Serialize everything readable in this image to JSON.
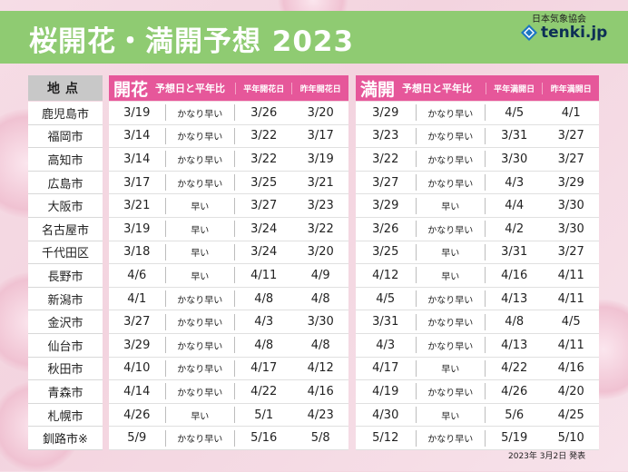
{
  "title": "桜開花・満開予想 2023",
  "logo": {
    "org": "日本気象協会",
    "brand": "tenki.jp"
  },
  "headers": {
    "location": "地点",
    "kaika_main": "開花",
    "kaika_sub": "予想日と平年比",
    "kaika_normal": "平年開花日",
    "kaika_last": "昨年開花日",
    "mankai_main": "満開",
    "mankai_sub": "予想日と平年比",
    "mankai_normal": "平年満開日",
    "mankai_last": "昨年満開日"
  },
  "rows": [
    {
      "loc": "鹿児島市",
      "k_date": "3/19",
      "k_cmp": "かなり早い",
      "k_norm": "3/26",
      "k_last": "3/20",
      "m_date": "3/29",
      "m_cmp": "かなり早い",
      "m_norm": "4/5",
      "m_last": "4/1"
    },
    {
      "loc": "福岡市",
      "k_date": "3/14",
      "k_cmp": "かなり早い",
      "k_norm": "3/22",
      "k_last": "3/17",
      "m_date": "3/23",
      "m_cmp": "かなり早い",
      "m_norm": "3/31",
      "m_last": "3/27"
    },
    {
      "loc": "高知市",
      "k_date": "3/14",
      "k_cmp": "かなり早い",
      "k_norm": "3/22",
      "k_last": "3/19",
      "m_date": "3/22",
      "m_cmp": "かなり早い",
      "m_norm": "3/30",
      "m_last": "3/27"
    },
    {
      "loc": "広島市",
      "k_date": "3/17",
      "k_cmp": "かなり早い",
      "k_norm": "3/25",
      "k_last": "3/21",
      "m_date": "3/27",
      "m_cmp": "かなり早い",
      "m_norm": "4/3",
      "m_last": "3/29"
    },
    {
      "loc": "大阪市",
      "k_date": "3/21",
      "k_cmp": "早い",
      "k_norm": "3/27",
      "k_last": "3/23",
      "m_date": "3/29",
      "m_cmp": "早い",
      "m_norm": "4/4",
      "m_last": "3/30"
    },
    {
      "loc": "名古屋市",
      "k_date": "3/19",
      "k_cmp": "早い",
      "k_norm": "3/24",
      "k_last": "3/22",
      "m_date": "3/26",
      "m_cmp": "かなり早い",
      "m_norm": "4/2",
      "m_last": "3/30"
    },
    {
      "loc": "千代田区",
      "k_date": "3/18",
      "k_cmp": "早い",
      "k_norm": "3/24",
      "k_last": "3/20",
      "m_date": "3/25",
      "m_cmp": "早い",
      "m_norm": "3/31",
      "m_last": "3/27"
    },
    {
      "loc": "長野市",
      "k_date": "4/6",
      "k_cmp": "早い",
      "k_norm": "4/11",
      "k_last": "4/9",
      "m_date": "4/12",
      "m_cmp": "早い",
      "m_norm": "4/16",
      "m_last": "4/11"
    },
    {
      "loc": "新潟市",
      "k_date": "4/1",
      "k_cmp": "かなり早い",
      "k_norm": "4/8",
      "k_last": "4/8",
      "m_date": "4/5",
      "m_cmp": "かなり早い",
      "m_norm": "4/13",
      "m_last": "4/11"
    },
    {
      "loc": "金沢市",
      "k_date": "3/27",
      "k_cmp": "かなり早い",
      "k_norm": "4/3",
      "k_last": "3/30",
      "m_date": "3/31",
      "m_cmp": "かなり早い",
      "m_norm": "4/8",
      "m_last": "4/5"
    },
    {
      "loc": "仙台市",
      "k_date": "3/29",
      "k_cmp": "かなり早い",
      "k_norm": "4/8",
      "k_last": "4/8",
      "m_date": "4/3",
      "m_cmp": "かなり早い",
      "m_norm": "4/13",
      "m_last": "4/11"
    },
    {
      "loc": "秋田市",
      "k_date": "4/10",
      "k_cmp": "かなり早い",
      "k_norm": "4/17",
      "k_last": "4/12",
      "m_date": "4/17",
      "m_cmp": "早い",
      "m_norm": "4/22",
      "m_last": "4/16"
    },
    {
      "loc": "青森市",
      "k_date": "4/14",
      "k_cmp": "かなり早い",
      "k_norm": "4/22",
      "k_last": "4/16",
      "m_date": "4/19",
      "m_cmp": "かなり早い",
      "m_norm": "4/26",
      "m_last": "4/20"
    },
    {
      "loc": "札幌市",
      "k_date": "4/26",
      "k_cmp": "早い",
      "k_norm": "5/1",
      "k_last": "4/23",
      "m_date": "4/30",
      "m_cmp": "早い",
      "m_norm": "5/6",
      "m_last": "4/25"
    },
    {
      "loc": "釧路市※",
      "k_date": "5/9",
      "k_cmp": "かなり早い",
      "k_norm": "5/16",
      "k_last": "5/8",
      "m_date": "5/12",
      "m_cmp": "かなり早い",
      "m_norm": "5/19",
      "m_last": "5/10"
    }
  ],
  "footnote": "2023年 3月2日 発表",
  "colors": {
    "header_green": "#8fcb72",
    "pink": "#e6579a",
    "gray": "#c8c8c8"
  }
}
